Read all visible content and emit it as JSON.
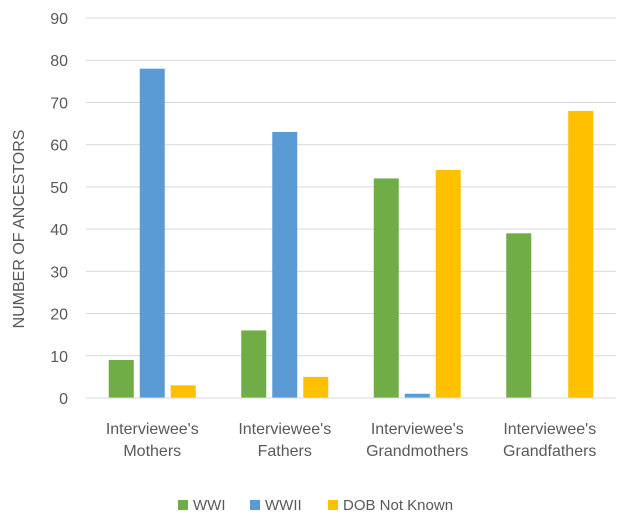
{
  "chart_data": {
    "type": "bar",
    "title": "",
    "xlabel": "",
    "ylabel": "NUMBER OF ANCESTORS",
    "ylim": [
      0,
      90
    ],
    "yticks": [
      0,
      10,
      20,
      30,
      40,
      50,
      60,
      70,
      80,
      90
    ],
    "grid": true,
    "legend_position": "bottom",
    "categories": [
      [
        "Interviewee's",
        "Mothers"
      ],
      [
        "Interviewee's",
        "Fathers"
      ],
      [
        "Interviewee's",
        "Grandmothers"
      ],
      [
        "Interviewee's",
        "Grandfathers"
      ]
    ],
    "series": [
      {
        "name": "WWI",
        "color": "#70ad47",
        "values": [
          9,
          16,
          52,
          39
        ]
      },
      {
        "name": "WWII",
        "color": "#5b9bd5",
        "values": [
          78,
          63,
          1,
          0
        ]
      },
      {
        "name": "DOB Not Known",
        "color": "#ffc000",
        "values": [
          3,
          5,
          54,
          68
        ]
      }
    ]
  }
}
